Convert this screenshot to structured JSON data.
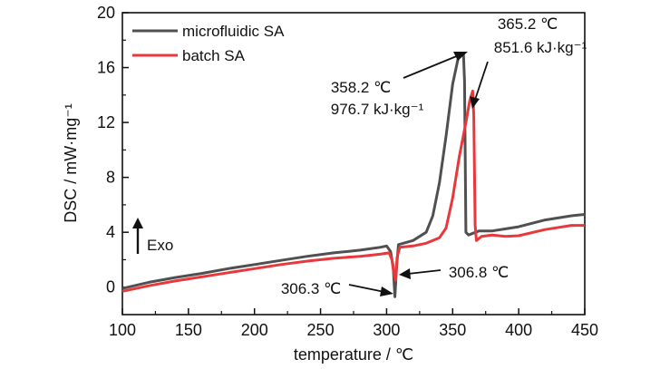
{
  "chart_data": {
    "type": "line",
    "xlabel": "temperature / ℃",
    "ylabel": "DSC / mW·mg⁻¹",
    "xlim": [
      100,
      450
    ],
    "ylim": [
      -2,
      20
    ],
    "xticks": [
      "100",
      "150",
      "200",
      "250",
      "300",
      "350",
      "400",
      "450"
    ],
    "yticks": [
      "0",
      "4",
      "8",
      "12",
      "16",
      "20"
    ],
    "legend_position": "top-left",
    "series": [
      {
        "name": "microfluidic SA",
        "color": "#505050",
        "points": [
          [
            100,
            -0.1
          ],
          [
            120,
            0.35
          ],
          [
            140,
            0.7
          ],
          [
            160,
            1.0
          ],
          [
            180,
            1.35
          ],
          [
            200,
            1.65
          ],
          [
            220,
            1.95
          ],
          [
            240,
            2.25
          ],
          [
            260,
            2.5
          ],
          [
            280,
            2.7
          ],
          [
            295,
            2.9
          ],
          [
            300,
            3.0
          ],
          [
            303,
            2.6
          ],
          [
            305,
            1.5
          ],
          [
            306.3,
            -0.7
          ],
          [
            307.5,
            1.4
          ],
          [
            309,
            3.1
          ],
          [
            320,
            3.4
          ],
          [
            330,
            4.0
          ],
          [
            335,
            5.2
          ],
          [
            340,
            7.6
          ],
          [
            345,
            11.0
          ],
          [
            350,
            14.8
          ],
          [
            354,
            16.6
          ],
          [
            356,
            17.0
          ],
          [
            358.2,
            17.0
          ],
          [
            359,
            15.0
          ],
          [
            360,
            4.0
          ],
          [
            362,
            3.8
          ],
          [
            370,
            4.1
          ],
          [
            380,
            4.1
          ],
          [
            400,
            4.4
          ],
          [
            420,
            4.9
          ],
          [
            440,
            5.2
          ],
          [
            450,
            5.3
          ]
        ]
      },
      {
        "name": "batch SA",
        "color": "#e8383b",
        "points": [
          [
            100,
            -0.3
          ],
          [
            120,
            0.1
          ],
          [
            140,
            0.45
          ],
          [
            160,
            0.75
          ],
          [
            180,
            1.05
          ],
          [
            200,
            1.35
          ],
          [
            220,
            1.65
          ],
          [
            240,
            1.9
          ],
          [
            260,
            2.1
          ],
          [
            280,
            2.25
          ],
          [
            295,
            2.4
          ],
          [
            302,
            2.5
          ],
          [
            304,
            2.0
          ],
          [
            305.5,
            1.0
          ],
          [
            306.8,
            0.5
          ],
          [
            308,
            2.2
          ],
          [
            310,
            2.9
          ],
          [
            320,
            3.0
          ],
          [
            330,
            3.2
          ],
          [
            340,
            3.6
          ],
          [
            345,
            4.3
          ],
          [
            350,
            6.5
          ],
          [
            355,
            9.5
          ],
          [
            360,
            12.0
          ],
          [
            363,
            13.6
          ],
          [
            365.2,
            14.3
          ],
          [
            366,
            12.5
          ],
          [
            367,
            4.5
          ],
          [
            368,
            3.4
          ],
          [
            372,
            3.7
          ],
          [
            380,
            3.8
          ],
          [
            390,
            3.7
          ],
          [
            400,
            3.75
          ],
          [
            420,
            4.2
          ],
          [
            440,
            4.5
          ],
          [
            450,
            4.5
          ]
        ]
      }
    ],
    "annotations": [
      {
        "lines": [
          "358.2 ℃",
          "976.7 kJ·kg⁻¹"
        ],
        "x": 358.2,
        "y": 17.0
      },
      {
        "lines": [
          "365.2 ℃",
          "851.6 kJ·kg⁻¹"
        ],
        "x": 365.2,
        "y": 14.3
      },
      {
        "lines": [
          "306.3 ℃"
        ],
        "x": 306.3,
        "y": -0.7
      },
      {
        "lines": [
          "306.8 ℃"
        ],
        "x": 306.8,
        "y": 0.5
      }
    ],
    "exo_label": "Exo"
  }
}
